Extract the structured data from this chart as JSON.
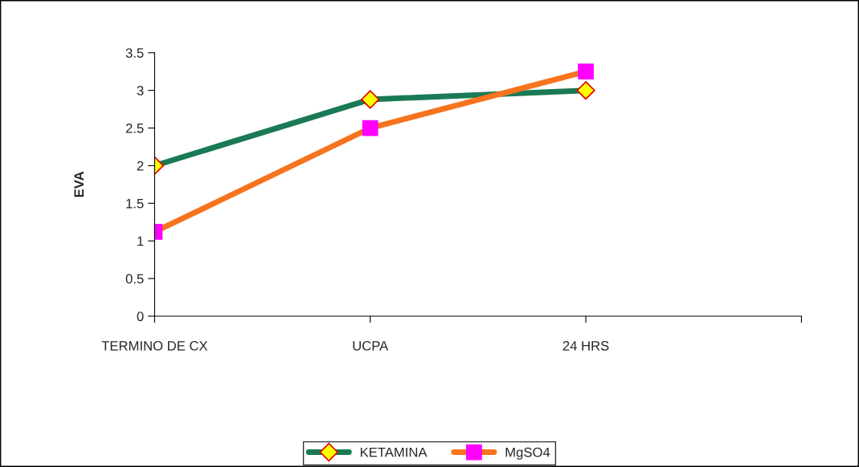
{
  "chart_data": {
    "type": "line",
    "ylabel": "EVA",
    "categories": [
      "TERMINO DE CX",
      "UCPA",
      "24 HRS",
      null
    ],
    "series": [
      {
        "name": "KETAMINA",
        "color": "#1a7a55",
        "marker": "diamond",
        "values": [
          2,
          2.88,
          3,
          null
        ]
      },
      {
        "name": "MgSO4",
        "color": "#f7731e",
        "marker": "square",
        "values": [
          1.12,
          2.5,
          3.25,
          null
        ]
      }
    ],
    "ylim": [
      0,
      3.5
    ],
    "yticks": [
      0,
      0.5,
      1,
      1.5,
      2,
      2.5,
      3,
      3.5
    ],
    "grid": false,
    "legend": "bottom"
  }
}
